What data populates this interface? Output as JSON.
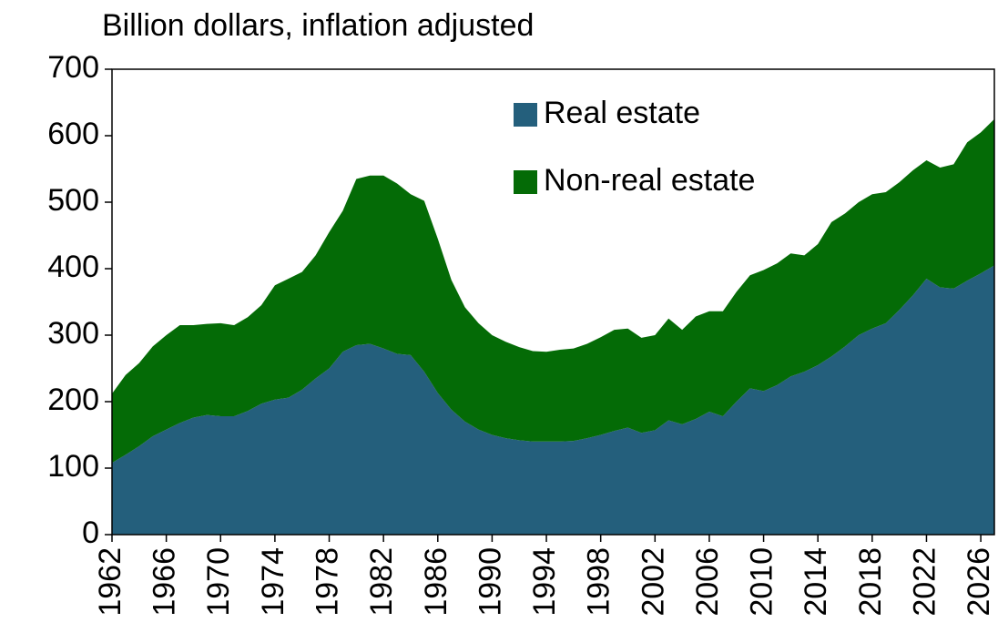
{
  "chart_data": {
    "type": "stacked_area",
    "title": "Billion dollars, inflation adjusted",
    "x": [
      1962,
      1963,
      1964,
      1965,
      1966,
      1967,
      1968,
      1969,
      1970,
      1971,
      1972,
      1973,
      1974,
      1975,
      1976,
      1977,
      1978,
      1979,
      1980,
      1981,
      1982,
      1983,
      1984,
      1985,
      1986,
      1987,
      1988,
      1989,
      1990,
      1991,
      1992,
      1993,
      1994,
      1995,
      1996,
      1997,
      1998,
      1999,
      2000,
      2001,
      2002,
      2003,
      2004,
      2005,
      2006,
      2007,
      2008,
      2009,
      2010,
      2011,
      2012,
      2013,
      2014,
      2015,
      2016,
      2017,
      2018,
      2019,
      2020,
      2021,
      2022,
      2023,
      2024,
      2025,
      2026,
      2027
    ],
    "series": [
      {
        "name": "Real estate",
        "color": "#245f7c",
        "values": [
          108,
          120,
          133,
          148,
          158,
          168,
          176,
          180,
          178,
          178,
          186,
          197,
          203,
          206,
          218,
          235,
          250,
          275,
          285,
          287,
          280,
          272,
          270,
          245,
          213,
          188,
          170,
          158,
          150,
          145,
          142,
          140,
          140,
          140,
          141,
          145,
          150,
          156,
          161,
          153,
          157,
          172,
          166,
          174,
          185,
          178,
          200,
          220,
          216,
          225,
          238,
          245,
          255,
          268,
          283,
          300,
          310,
          318,
          338,
          360,
          385,
          372,
          370,
          382,
          393,
          405
        ]
      },
      {
        "name": "Non-real estate",
        "color": "#046b06",
        "values": [
          104,
          120,
          125,
          135,
          142,
          147,
          139,
          137,
          140,
          137,
          141,
          148,
          172,
          179,
          177,
          185,
          205,
          212,
          250,
          253,
          260,
          256,
          242,
          257,
          232,
          195,
          172,
          160,
          150,
          145,
          140,
          136,
          135,
          138,
          139,
          142,
          147,
          152,
          149,
          143,
          143,
          153,
          142,
          154,
          151,
          158,
          165,
          170,
          182,
          183,
          185,
          175,
          182,
          202,
          200,
          200,
          202,
          197,
          192,
          188,
          178,
          180,
          187,
          208,
          212,
          220
        ]
      }
    ],
    "xlim": [
      1962,
      2027
    ],
    "xticks": [
      1962,
      1966,
      1970,
      1974,
      1978,
      1982,
      1986,
      1990,
      1994,
      1998,
      2002,
      2006,
      2010,
      2014,
      2018,
      2022,
      2026
    ],
    "ylim": [
      0,
      700
    ],
    "yticks": [
      0,
      100,
      200,
      300,
      400,
      500,
      600,
      700
    ],
    "legend": "top"
  }
}
